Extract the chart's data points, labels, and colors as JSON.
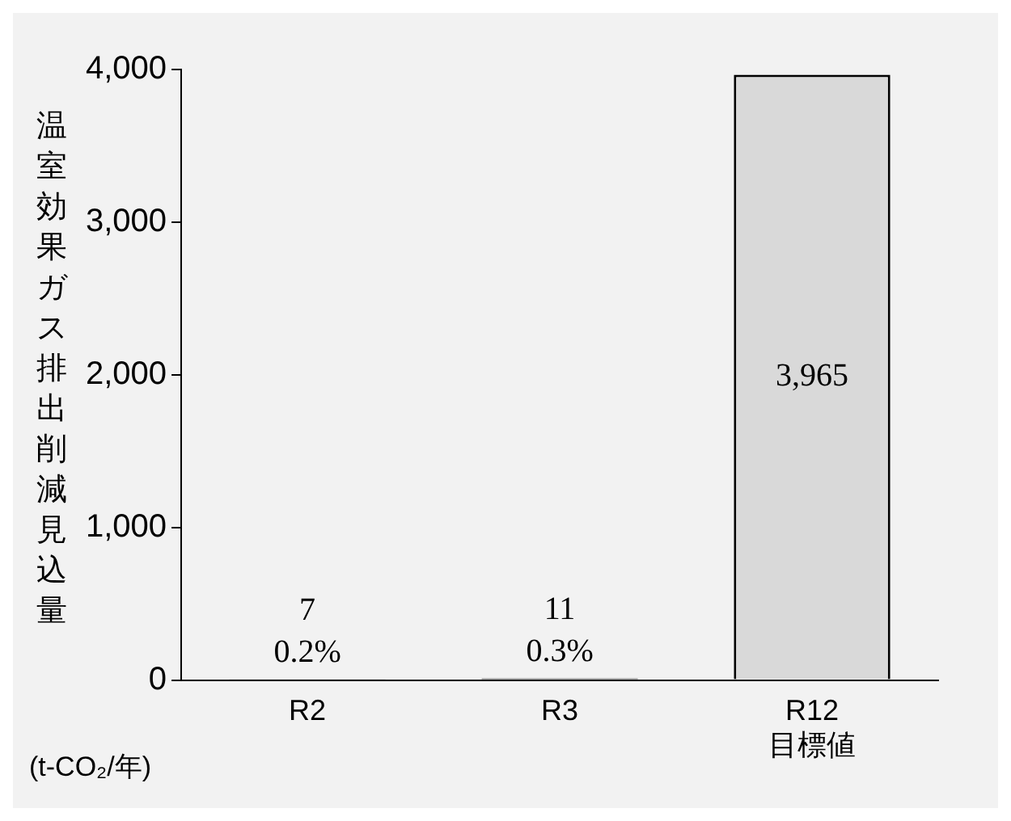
{
  "chart_data": {
    "type": "bar",
    "ylabel": "温室効果ガス排出削減見込量",
    "categories": [
      "R2",
      "R3",
      "R12\n目標値"
    ],
    "values": [
      7,
      11,
      3965
    ],
    "colors": [
      "#000000",
      "#000000",
      "#d9d9d9"
    ],
    "value_labels": [
      "7\n0.2%",
      "11\n0.3%",
      "3,965"
    ],
    "ylim": [
      0,
      4000
    ],
    "yticks": [
      {
        "value": 0,
        "label": "0"
      },
      {
        "value": 1000,
        "label": "1,000"
      },
      {
        "value": 2000,
        "label": "2,000"
      },
      {
        "value": 3000,
        "label": "3,000"
      },
      {
        "value": 4000,
        "label": "4,000"
      }
    ],
    "grid": false,
    "legend": false,
    "annotations": [
      "(t-CO₂/年)"
    ]
  }
}
